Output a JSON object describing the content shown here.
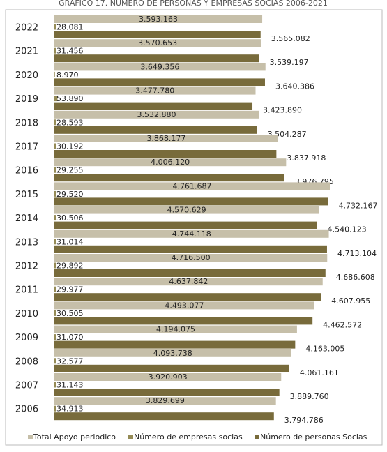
{
  "chart_data": {
    "type": "bar",
    "orientation": "horizontal",
    "title": "GRÁFICO 17. NÚMERO DE PERSONAS Y EMPRESAS SOCIAS 2006-2021",
    "categories": [
      "2022",
      "2021",
      "2020",
      "2019",
      "2018",
      "2017",
      "2016",
      "2015",
      "2014",
      "2013",
      "2012",
      "2011",
      "2010",
      "2009",
      "2008",
      "2007",
      "2006"
    ],
    "series": [
      {
        "name": "Total Apoyo periodico",
        "color": "#c6bfa9",
        "values": [
          3593163,
          3570653,
          3649356,
          3477780,
          3532880,
          3868177,
          4006120,
          4761687,
          4570629,
          4744118,
          4716500,
          4637842,
          4493077,
          4194075,
          4093738,
          3920903,
          3829699
        ],
        "value_labels": [
          "3.593.163",
          "3.570.653",
          "3.649.356",
          "3.477.780",
          "3.532.880",
          "3.868.177",
          "4.006.120",
          "4.761.687",
          "4.570.629",
          "4.744.118",
          "4.716.500",
          "4.637.842",
          "4.493.077",
          "4.194.075",
          "4.093.738",
          "3.920.903",
          "3.829.699"
        ]
      },
      {
        "name": "Número de empresas socias",
        "color": "#958b56",
        "values": [
          28081,
          31456,
          8970,
          53890,
          28593,
          30192,
          29255,
          29520,
          30506,
          31014,
          29892,
          29977,
          30505,
          31070,
          32577,
          31143,
          34913
        ],
        "value_labels": [
          "28.081",
          "31.456",
          "8.970",
          "53.890",
          "28.593",
          "30.192",
          "29.255",
          "29.520",
          "30.506",
          "31.014",
          "29.892",
          "29.977",
          "30.505",
          "31.070",
          "32.577",
          "31.143",
          "34.913"
        ]
      },
      {
        "name": "Número de personas Socias",
        "color": "#786b3b",
        "values": [
          3565082,
          3539197,
          3640386,
          3423890,
          3504287,
          3837918,
          3976795,
          4732167,
          4540123,
          4713104,
          4686608,
          4607955,
          4462572,
          4163005,
          4061161,
          3889760,
          3794786
        ],
        "value_labels": [
          "3.565.082",
          "3.539.197",
          "3.640.386",
          "3.423.890",
          "3.504.287",
          "3.837.918",
          "3.976.795",
          "4.732.167",
          "4.540.123",
          "4.713.104",
          "4.686.608",
          "4.607.955",
          "4.462.572",
          "4.163.005",
          "4.061.161",
          "3.889.760",
          "3.794.786"
        ]
      }
    ]
  }
}
